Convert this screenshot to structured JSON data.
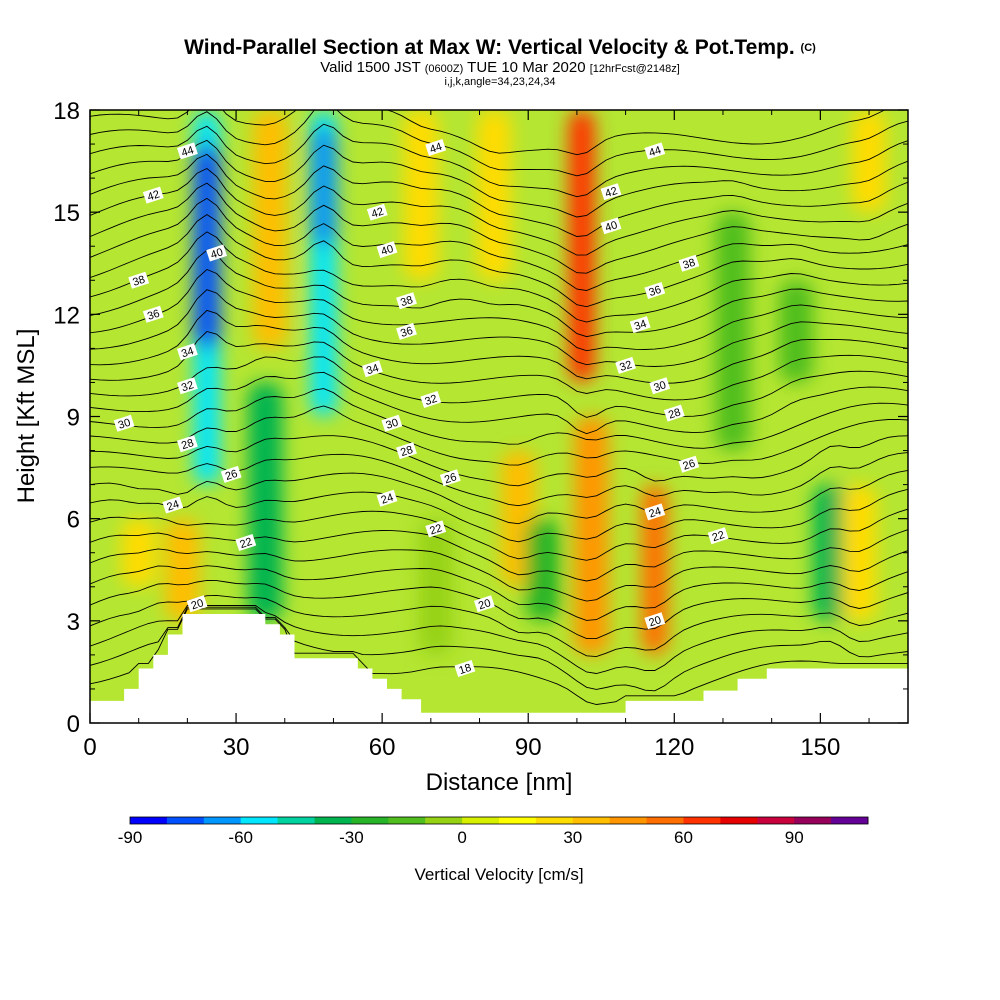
{
  "header": {
    "title": "Wind-Parallel Section at Max W: Vertical Velocity & Pot.Temp.",
    "title_suffix": "(C)",
    "valid_prefix": "Valid 1500 JST",
    "valid_utc": "(0600Z)",
    "valid_date": "TUE 10 Mar 2020",
    "valid_fcst": "[12hrFcst@2148z]",
    "ij_line": "i,j,k,angle=34,23,24,34"
  },
  "colors": {
    "plot_bg": "#b4e632",
    "contour_line": "#000000",
    "terrain_fill": "#ffffff",
    "colorbar": [
      "#0000ff",
      "#0050ff",
      "#0096ff",
      "#00e6ff",
      "#00d2a0",
      "#00b450",
      "#28b428",
      "#50be1e",
      "#96d214",
      "#d7f000",
      "#ffff00",
      "#ffdc00",
      "#ffbe00",
      "#ff9600",
      "#ff6e00",
      "#ff3200",
      "#e60000",
      "#c8003c",
      "#96005a",
      "#640096"
    ]
  },
  "chart_data": {
    "type": "heatmap",
    "title": "Wind-Parallel Section at Max W: Vertical Velocity & Pot.Temp.",
    "xlabel": "Distance [nm]",
    "ylabel": "Height [Kft MSL]",
    "xlim": [
      0,
      168
    ],
    "ylim": [
      0,
      18
    ],
    "x_ticks": [
      0,
      30,
      60,
      90,
      120,
      150
    ],
    "y_ticks": [
      0,
      3,
      6,
      9,
      12,
      15,
      18
    ],
    "colorbar": {
      "label": "Vertical Velocity [cm/s]",
      "tick_values": [
        -90,
        -60,
        -30,
        0,
        30,
        60,
        90
      ],
      "range": [
        -90,
        110
      ]
    },
    "terrain": [
      [
        0,
        0.65
      ],
      [
        7,
        0.65
      ],
      [
        7,
        1
      ],
      [
        10,
        1
      ],
      [
        10,
        1.6
      ],
      [
        13,
        1.6
      ],
      [
        13,
        2
      ],
      [
        16,
        2
      ],
      [
        16,
        2.6
      ],
      [
        19,
        2.6
      ],
      [
        19,
        3.2
      ],
      [
        36,
        3.2
      ],
      [
        36,
        2.9
      ],
      [
        39,
        2.9
      ],
      [
        39,
        2.6
      ],
      [
        42,
        2.6
      ],
      [
        42,
        1.9
      ],
      [
        55,
        1.9
      ],
      [
        55,
        1.6
      ],
      [
        58,
        1.6
      ],
      [
        58,
        1.3
      ],
      [
        61,
        1.3
      ],
      [
        61,
        1
      ],
      [
        64,
        1
      ],
      [
        64,
        0.7
      ],
      [
        68,
        0.7
      ],
      [
        68,
        0.3
      ],
      [
        71,
        0.3
      ],
      [
        71,
        0.3
      ],
      [
        110,
        0.3
      ],
      [
        110,
        0.65
      ],
      [
        126,
        0.65
      ],
      [
        126,
        0.95
      ],
      [
        133,
        0.95
      ],
      [
        133,
        1.3
      ],
      [
        139,
        1.3
      ],
      [
        139,
        1.6
      ],
      [
        168,
        1.6
      ]
    ],
    "w_cells": [
      {
        "x": 24,
        "y": [
          7,
          18
        ],
        "w": -60
      },
      {
        "x": 24,
        "y": [
          11,
          17
        ],
        "w": -75
      },
      {
        "x": 48,
        "y": [
          9,
          18
        ],
        "w": -55
      },
      {
        "x": 48,
        "y": [
          14,
          17.5
        ],
        "w": -65
      },
      {
        "x": 36,
        "y": [
          3,
          10
        ],
        "w": -35
      },
      {
        "x": 19,
        "y": [
          3,
          6
        ],
        "w": 35
      },
      {
        "x": 37,
        "y": [
          11,
          18
        ],
        "w": 30
      },
      {
        "x": 68,
        "y": [
          13,
          18
        ],
        "w": 25
      },
      {
        "x": 83,
        "y": [
          13,
          18
        ],
        "w": 25
      },
      {
        "x": 101,
        "y": [
          10,
          18
        ],
        "w": 60
      },
      {
        "x": 103,
        "y": [
          2,
          9
        ],
        "w": 45
      },
      {
        "x": 116,
        "y": [
          2,
          7
        ],
        "w": 55
      },
      {
        "x": 88,
        "y": [
          4,
          8
        ],
        "w": 30
      },
      {
        "x": 93,
        "y": [
          3,
          6
        ],
        "w": -25
      },
      {
        "x": 132,
        "y": [
          8,
          15
        ],
        "w": -20
      },
      {
        "x": 145,
        "y": [
          10,
          13
        ],
        "w": -20
      },
      {
        "x": 152,
        "y": [
          3,
          7
        ],
        "w": -40
      },
      {
        "x": 158,
        "y": [
          3,
          7
        ],
        "w": 25
      },
      {
        "x": 160,
        "y": [
          15,
          18
        ],
        "w": 25
      },
      {
        "x": 71,
        "y": [
          2,
          6
        ],
        "w": -10
      },
      {
        "x": 10,
        "y": [
          4,
          6
        ],
        "w": 25
      }
    ],
    "theta_contours": {
      "levels": [
        16,
        17,
        18,
        19,
        20,
        21,
        22,
        23,
        24,
        25,
        26,
        27,
        28,
        29,
        30,
        31,
        32,
        33,
        34,
        35,
        36,
        37,
        38,
        39,
        40,
        41,
        42,
        43,
        44,
        45,
        46,
        47
      ],
      "labels": [
        {
          "text": "44",
          "x": 20,
          "y": 16.8
        },
        {
          "text": "42",
          "x": 13,
          "y": 15.5
        },
        {
          "text": "40",
          "x": 26,
          "y": 13.8
        },
        {
          "text": "38",
          "x": 10,
          "y": 13
        },
        {
          "text": "36",
          "x": 13,
          "y": 12
        },
        {
          "text": "34",
          "x": 20,
          "y": 10.9
        },
        {
          "text": "32",
          "x": 20,
          "y": 9.9
        },
        {
          "text": "30",
          "x": 7,
          "y": 8.8
        },
        {
          "text": "28",
          "x": 20,
          "y": 8.2
        },
        {
          "text": "26",
          "x": 29,
          "y": 7.3
        },
        {
          "text": "24",
          "x": 17,
          "y": 6.4
        },
        {
          "text": "22",
          "x": 32,
          "y": 5.3
        },
        {
          "text": "20",
          "x": 22,
          "y": 3.5
        },
        {
          "text": "44",
          "x": 71,
          "y": 16.9
        },
        {
          "text": "42",
          "x": 59,
          "y": 15
        },
        {
          "text": "40",
          "x": 61,
          "y": 13.9
        },
        {
          "text": "38",
          "x": 65,
          "y": 12.4
        },
        {
          "text": "36",
          "x": 65,
          "y": 11.5
        },
        {
          "text": "34",
          "x": 58,
          "y": 10.4
        },
        {
          "text": "32",
          "x": 70,
          "y": 9.5
        },
        {
          "text": "30",
          "x": 62,
          "y": 8.8
        },
        {
          "text": "28",
          "x": 65,
          "y": 8
        },
        {
          "text": "26",
          "x": 74,
          "y": 7.2
        },
        {
          "text": "24",
          "x": 61,
          "y": 6.6
        },
        {
          "text": "22",
          "x": 71,
          "y": 5.7
        },
        {
          "text": "20",
          "x": 81,
          "y": 3.5
        },
        {
          "text": "18",
          "x": 77,
          "y": 1.6
        },
        {
          "text": "44",
          "x": 116,
          "y": 16.8
        },
        {
          "text": "42",
          "x": 107,
          "y": 15.6
        },
        {
          "text": "40",
          "x": 107,
          "y": 14.6
        },
        {
          "text": "38",
          "x": 123,
          "y": 13.5
        },
        {
          "text": "36",
          "x": 116,
          "y": 12.7
        },
        {
          "text": "34",
          "x": 113,
          "y": 11.7
        },
        {
          "text": "32",
          "x": 110,
          "y": 10.5
        },
        {
          "text": "30",
          "x": 117,
          "y": 9.9
        },
        {
          "text": "28",
          "x": 120,
          "y": 9.1
        },
        {
          "text": "26",
          "x": 123,
          "y": 7.6
        },
        {
          "text": "24",
          "x": 116,
          "y": 6.2
        },
        {
          "text": "22",
          "x": 129,
          "y": 5.5
        },
        {
          "text": "20",
          "x": 116,
          "y": 3
        }
      ]
    }
  }
}
